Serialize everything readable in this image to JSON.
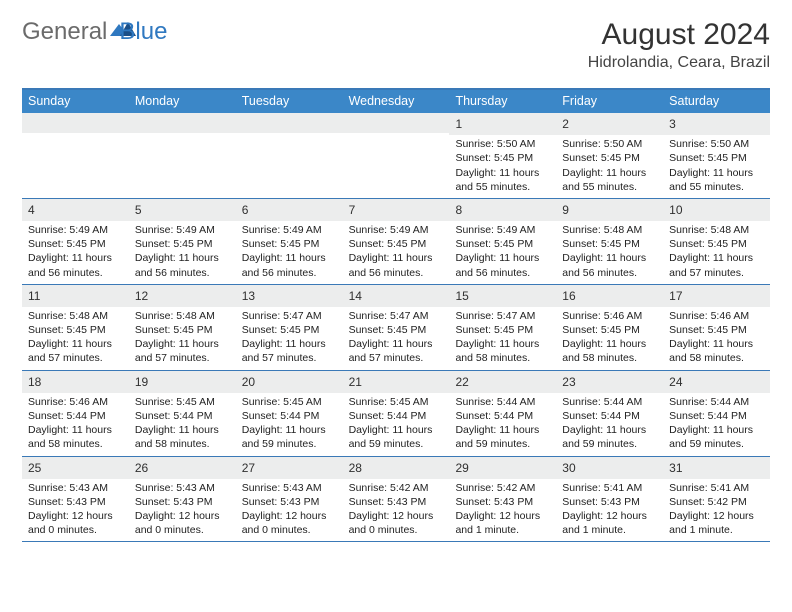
{
  "logo": {
    "text1": "General",
    "text2": "Blue"
  },
  "title": "August 2024",
  "location": "Hidrolandia, Ceara, Brazil",
  "colors": {
    "header_bg": "#3b87c8",
    "rule": "#3a79b7",
    "daynum_bg": "#eceded",
    "logo_grey": "#6b6b6b",
    "logo_blue": "#2f78c0"
  },
  "day_headers": [
    "Sunday",
    "Monday",
    "Tuesday",
    "Wednesday",
    "Thursday",
    "Friday",
    "Saturday"
  ],
  "weeks": [
    [
      {
        "n": "",
        "sr": "",
        "ss": "",
        "dl": ""
      },
      {
        "n": "",
        "sr": "",
        "ss": "",
        "dl": ""
      },
      {
        "n": "",
        "sr": "",
        "ss": "",
        "dl": ""
      },
      {
        "n": "",
        "sr": "",
        "ss": "",
        "dl": ""
      },
      {
        "n": "1",
        "sr": "Sunrise: 5:50 AM",
        "ss": "Sunset: 5:45 PM",
        "dl": "Daylight: 11 hours and 55 minutes."
      },
      {
        "n": "2",
        "sr": "Sunrise: 5:50 AM",
        "ss": "Sunset: 5:45 PM",
        "dl": "Daylight: 11 hours and 55 minutes."
      },
      {
        "n": "3",
        "sr": "Sunrise: 5:50 AM",
        "ss": "Sunset: 5:45 PM",
        "dl": "Daylight: 11 hours and 55 minutes."
      }
    ],
    [
      {
        "n": "4",
        "sr": "Sunrise: 5:49 AM",
        "ss": "Sunset: 5:45 PM",
        "dl": "Daylight: 11 hours and 56 minutes."
      },
      {
        "n": "5",
        "sr": "Sunrise: 5:49 AM",
        "ss": "Sunset: 5:45 PM",
        "dl": "Daylight: 11 hours and 56 minutes."
      },
      {
        "n": "6",
        "sr": "Sunrise: 5:49 AM",
        "ss": "Sunset: 5:45 PM",
        "dl": "Daylight: 11 hours and 56 minutes."
      },
      {
        "n": "7",
        "sr": "Sunrise: 5:49 AM",
        "ss": "Sunset: 5:45 PM",
        "dl": "Daylight: 11 hours and 56 minutes."
      },
      {
        "n": "8",
        "sr": "Sunrise: 5:49 AM",
        "ss": "Sunset: 5:45 PM",
        "dl": "Daylight: 11 hours and 56 minutes."
      },
      {
        "n": "9",
        "sr": "Sunrise: 5:48 AM",
        "ss": "Sunset: 5:45 PM",
        "dl": "Daylight: 11 hours and 56 minutes."
      },
      {
        "n": "10",
        "sr": "Sunrise: 5:48 AM",
        "ss": "Sunset: 5:45 PM",
        "dl": "Daylight: 11 hours and 57 minutes."
      }
    ],
    [
      {
        "n": "11",
        "sr": "Sunrise: 5:48 AM",
        "ss": "Sunset: 5:45 PM",
        "dl": "Daylight: 11 hours and 57 minutes."
      },
      {
        "n": "12",
        "sr": "Sunrise: 5:48 AM",
        "ss": "Sunset: 5:45 PM",
        "dl": "Daylight: 11 hours and 57 minutes."
      },
      {
        "n": "13",
        "sr": "Sunrise: 5:47 AM",
        "ss": "Sunset: 5:45 PM",
        "dl": "Daylight: 11 hours and 57 minutes."
      },
      {
        "n": "14",
        "sr": "Sunrise: 5:47 AM",
        "ss": "Sunset: 5:45 PM",
        "dl": "Daylight: 11 hours and 57 minutes."
      },
      {
        "n": "15",
        "sr": "Sunrise: 5:47 AM",
        "ss": "Sunset: 5:45 PM",
        "dl": "Daylight: 11 hours and 58 minutes."
      },
      {
        "n": "16",
        "sr": "Sunrise: 5:46 AM",
        "ss": "Sunset: 5:45 PM",
        "dl": "Daylight: 11 hours and 58 minutes."
      },
      {
        "n": "17",
        "sr": "Sunrise: 5:46 AM",
        "ss": "Sunset: 5:45 PM",
        "dl": "Daylight: 11 hours and 58 minutes."
      }
    ],
    [
      {
        "n": "18",
        "sr": "Sunrise: 5:46 AM",
        "ss": "Sunset: 5:44 PM",
        "dl": "Daylight: 11 hours and 58 minutes."
      },
      {
        "n": "19",
        "sr": "Sunrise: 5:45 AM",
        "ss": "Sunset: 5:44 PM",
        "dl": "Daylight: 11 hours and 58 minutes."
      },
      {
        "n": "20",
        "sr": "Sunrise: 5:45 AM",
        "ss": "Sunset: 5:44 PM",
        "dl": "Daylight: 11 hours and 59 minutes."
      },
      {
        "n": "21",
        "sr": "Sunrise: 5:45 AM",
        "ss": "Sunset: 5:44 PM",
        "dl": "Daylight: 11 hours and 59 minutes."
      },
      {
        "n": "22",
        "sr": "Sunrise: 5:44 AM",
        "ss": "Sunset: 5:44 PM",
        "dl": "Daylight: 11 hours and 59 minutes."
      },
      {
        "n": "23",
        "sr": "Sunrise: 5:44 AM",
        "ss": "Sunset: 5:44 PM",
        "dl": "Daylight: 11 hours and 59 minutes."
      },
      {
        "n": "24",
        "sr": "Sunrise: 5:44 AM",
        "ss": "Sunset: 5:44 PM",
        "dl": "Daylight: 11 hours and 59 minutes."
      }
    ],
    [
      {
        "n": "25",
        "sr": "Sunrise: 5:43 AM",
        "ss": "Sunset: 5:43 PM",
        "dl": "Daylight: 12 hours and 0 minutes."
      },
      {
        "n": "26",
        "sr": "Sunrise: 5:43 AM",
        "ss": "Sunset: 5:43 PM",
        "dl": "Daylight: 12 hours and 0 minutes."
      },
      {
        "n": "27",
        "sr": "Sunrise: 5:43 AM",
        "ss": "Sunset: 5:43 PM",
        "dl": "Daylight: 12 hours and 0 minutes."
      },
      {
        "n": "28",
        "sr": "Sunrise: 5:42 AM",
        "ss": "Sunset: 5:43 PM",
        "dl": "Daylight: 12 hours and 0 minutes."
      },
      {
        "n": "29",
        "sr": "Sunrise: 5:42 AM",
        "ss": "Sunset: 5:43 PM",
        "dl": "Daylight: 12 hours and 1 minute."
      },
      {
        "n": "30",
        "sr": "Sunrise: 5:41 AM",
        "ss": "Sunset: 5:43 PM",
        "dl": "Daylight: 12 hours and 1 minute."
      },
      {
        "n": "31",
        "sr": "Sunrise: 5:41 AM",
        "ss": "Sunset: 5:42 PM",
        "dl": "Daylight: 12 hours and 1 minute."
      }
    ]
  ]
}
